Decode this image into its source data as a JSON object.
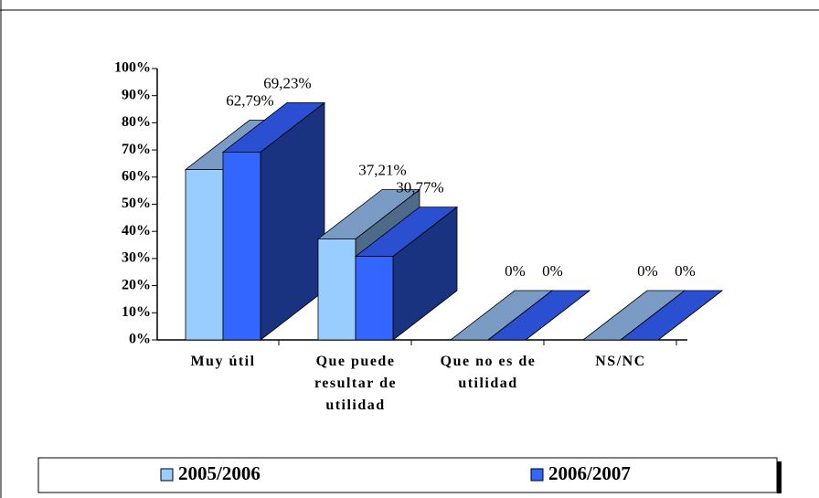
{
  "chart_data": {
    "type": "bar3d",
    "categories": [
      "Muy útil",
      "Que puede resultar de utilidad",
      "Que no es de utilidad",
      "NS/NC"
    ],
    "series": [
      {
        "name": "2005/2006",
        "color": "#99ccff",
        "top_color": "#7a9cc4",
        "side_color": "#4f6a88",
        "values": [
          62.79,
          37.21,
          0,
          0
        ],
        "value_labels": [
          "62,79%",
          "37,21%",
          "0%",
          "0%"
        ]
      },
      {
        "name": "2006/2007",
        "color": "#3366ff",
        "top_color": "#2a4fd0",
        "side_color": "#1a3380",
        "values": [
          69.23,
          30.77,
          0,
          0
        ],
        "value_labels": [
          "69,23%",
          "30,77%",
          "0%",
          "0%"
        ]
      }
    ],
    "ylim": [
      0,
      100
    ],
    "yticks": [
      {
        "value": 0,
        "label": "0%"
      },
      {
        "value": 10,
        "label": "10%"
      },
      {
        "value": 20,
        "label": "20%"
      },
      {
        "value": 30,
        "label": "30%"
      },
      {
        "value": 40,
        "label": "40%"
      },
      {
        "value": 50,
        "label": "50%"
      },
      {
        "value": 60,
        "label": "60%"
      },
      {
        "value": 70,
        "label": "70%"
      },
      {
        "value": 80,
        "label": "80%"
      },
      {
        "value": 90,
        "label": "90%"
      },
      {
        "value": 100,
        "label": "100%"
      }
    ],
    "legend": "bottom"
  }
}
